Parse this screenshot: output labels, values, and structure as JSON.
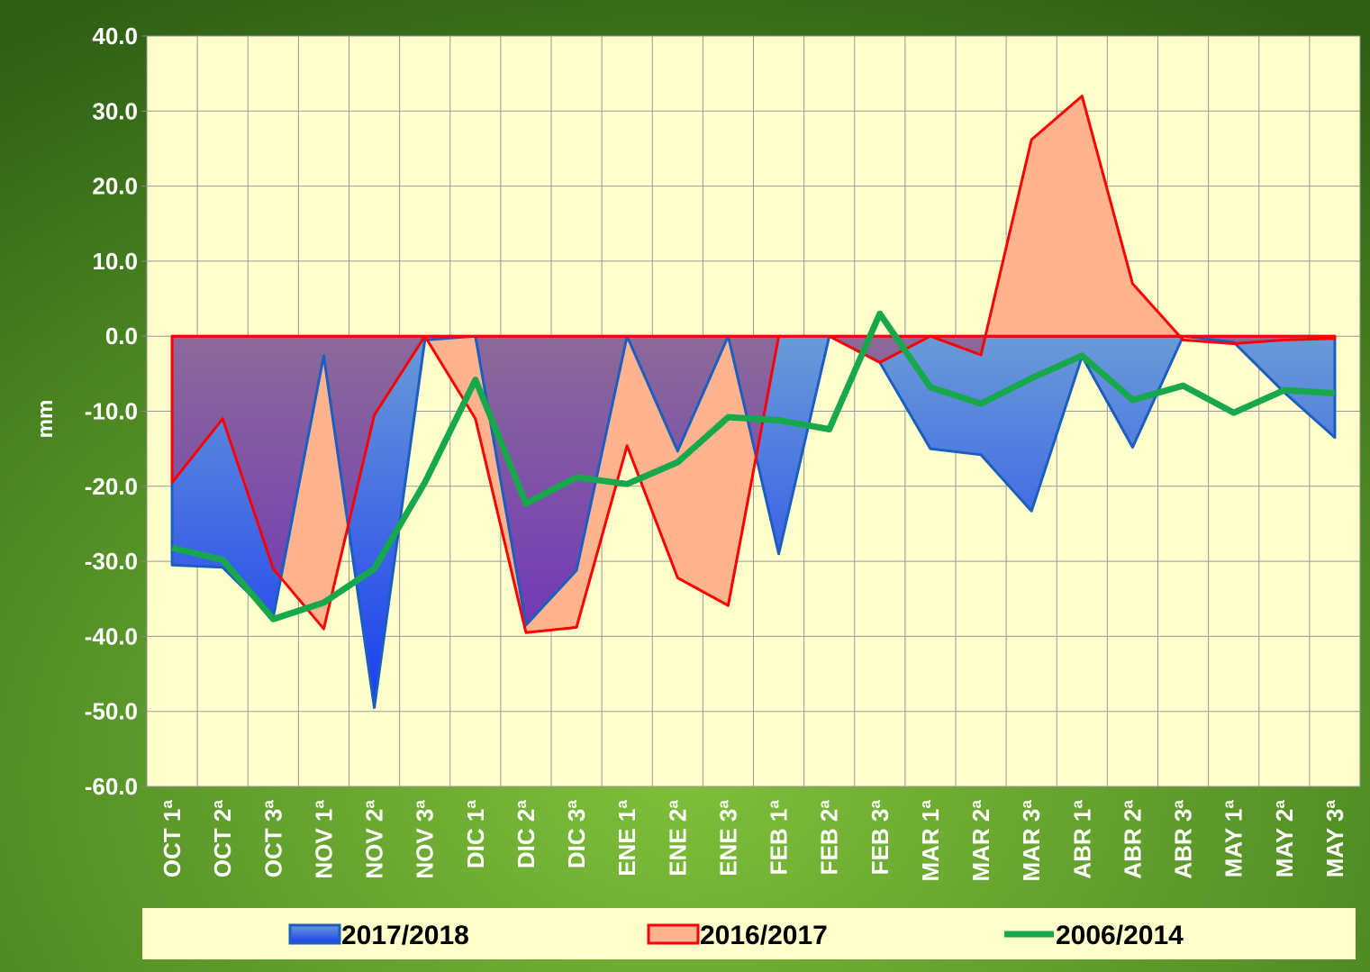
{
  "chart_data": {
    "type": "area-line",
    "y_label": "mm",
    "categories": [
      "OCT 1ª",
      "OCT 2ª",
      "OCT 3ª",
      "NOV 1ª",
      "NOV 2ª",
      "NOV 3ª",
      "DIC 1ª",
      "DIC 2ª",
      "DIC 3ª",
      "ENE 1ª",
      "ENE 2ª",
      "ENE 3ª",
      "FEB 1ª",
      "FEB 2ª",
      "FEB 3ª",
      "MAR 1ª",
      "MAR 2ª",
      "MAR 3ª",
      "ABR 1ª",
      "ABR 2ª",
      "ABR 3ª",
      "MAY 1ª",
      "MAY 2ª",
      "MAY 3ª"
    ],
    "series": [
      {
        "name": "2017/2018",
        "kind": "area",
        "color": "#3a6fd8",
        "values": [
          -30.5,
          -30.8,
          -37.5,
          -2.6,
          -49.5,
          -0.5,
          0,
          -38.5,
          -31.2,
          0,
          -15.3,
          0,
          -29,
          0,
          -3.5,
          -15,
          -15.8,
          -23.3,
          -2.7,
          -14.8,
          0,
          -0.8,
          -7.5,
          -13.5
        ]
      },
      {
        "name": "2016/2017",
        "kind": "area",
        "color": "#ff0000",
        "values": [
          -19.5,
          -11,
          -31,
          -39,
          -10.5,
          0,
          -11,
          -39.5,
          -38.8,
          -14.6,
          -32.2,
          -35.9,
          0,
          0,
          -3.5,
          0,
          -2.5,
          26.2,
          32,
          7,
          -0.5,
          -1,
          -0.5,
          -0.3
        ]
      },
      {
        "name": "2006/2014",
        "kind": "line",
        "color": "#16a84a",
        "values": [
          -28.2,
          -29.8,
          -37.7,
          -35.5,
          -31,
          -19.5,
          -5.8,
          -22.3,
          -18.8,
          -19.7,
          -16.8,
          -10.8,
          -11.2,
          -12.4,
          3,
          -6.8,
          -9,
          -5.6,
          -2.6,
          -8.5,
          -6.6,
          -10.2,
          -7.2,
          -7.6
        ]
      }
    ],
    "ylim": [
      -60,
      40
    ],
    "yticks": [
      {
        "value": -60,
        "label": "-60.0"
      },
      {
        "value": -50,
        "label": "-50.0"
      },
      {
        "value": -40,
        "label": "-40.0"
      },
      {
        "value": -30,
        "label": "-30.0"
      },
      {
        "value": -20,
        "label": "-20.0"
      },
      {
        "value": -10,
        "label": "-10.0"
      },
      {
        "value": 0,
        "label": "0.0"
      },
      {
        "value": 10,
        "label": "10.0"
      },
      {
        "value": 20,
        "label": "20.0"
      },
      {
        "value": 30,
        "label": "30.0"
      },
      {
        "value": 40,
        "label": "40.0"
      }
    ],
    "grid": true,
    "legend": "bottom"
  }
}
